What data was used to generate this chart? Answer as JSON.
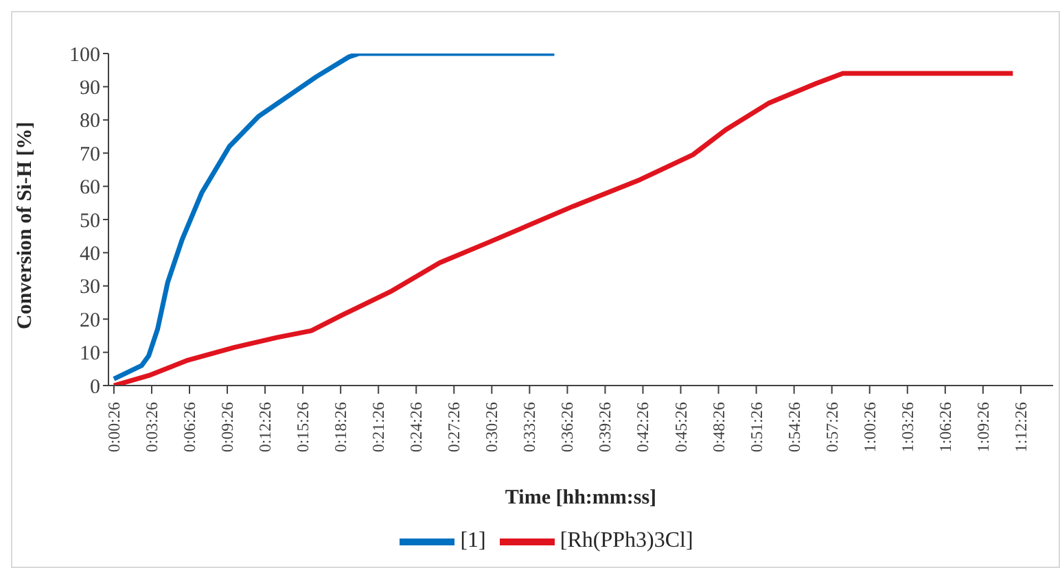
{
  "chart_data": {
    "type": "line",
    "xlabel": "Time [hh:mm:ss]",
    "ylabel": "Conversion of Si-H [%]",
    "xlim": [
      0,
      1.25
    ],
    "ylim": [
      0,
      100
    ],
    "yticks": [
      0,
      10,
      20,
      30,
      40,
      50,
      60,
      70,
      80,
      90,
      100
    ],
    "xticks": [
      {
        "value": 0.0072,
        "label": "0:00:26"
      },
      {
        "value": 0.0572,
        "label": "0:03:26"
      },
      {
        "value": 0.1072,
        "label": "0:06:26"
      },
      {
        "value": 0.1572,
        "label": "0:09:26"
      },
      {
        "value": 0.2072,
        "label": "0:12:26"
      },
      {
        "value": 0.2572,
        "label": "0:15:26"
      },
      {
        "value": 0.3072,
        "label": "0:18:26"
      },
      {
        "value": 0.3572,
        "label": "0:21:26"
      },
      {
        "value": 0.4072,
        "label": "0:24:26"
      },
      {
        "value": 0.4572,
        "label": "0:27:26"
      },
      {
        "value": 0.5072,
        "label": "0:30:26"
      },
      {
        "value": 0.5572,
        "label": "0:33:26"
      },
      {
        "value": 0.6072,
        "label": "0:36:26"
      },
      {
        "value": 0.6572,
        "label": "0:39:26"
      },
      {
        "value": 0.7072,
        "label": "0:42:26"
      },
      {
        "value": 0.7572,
        "label": "0:45:26"
      },
      {
        "value": 0.8072,
        "label": "0:48:26"
      },
      {
        "value": 0.8572,
        "label": "0:51:26"
      },
      {
        "value": 0.9072,
        "label": "0:54:26"
      },
      {
        "value": 0.9572,
        "label": "0:57:26"
      },
      {
        "value": 1.0072,
        "label": "1:00:26"
      },
      {
        "value": 1.0572,
        "label": "1:03:26"
      },
      {
        "value": 1.1072,
        "label": "1:06:26"
      },
      {
        "value": 1.1572,
        "label": "1:09:26"
      },
      {
        "value": 1.2072,
        "label": "1:12:26"
      }
    ],
    "grid": false,
    "legend": "bottom",
    "marker": "none",
    "line_style": "solid",
    "series": [
      {
        "name": "[1]",
        "color": "#0070c0",
        "x": [
          0.0072,
          0.0438,
          0.0533,
          0.065,
          0.0783,
          0.0975,
          0.1233,
          0.16,
          0.1983,
          0.2367,
          0.275,
          0.3183,
          0.3317,
          0.3567,
          0.59
        ],
        "values": [
          2,
          6,
          9,
          17,
          31,
          44,
          58,
          72,
          81,
          87,
          93,
          99,
          100,
          100,
          100
        ]
      },
      {
        "name": "[Rh(PPh3)3Cl]",
        "color": "#e0141e",
        "x": [
          0.0072,
          0.0533,
          0.1033,
          0.1667,
          0.2233,
          0.2683,
          0.3117,
          0.375,
          0.4383,
          0.5017,
          0.615,
          0.7033,
          0.7733,
          0.8167,
          0.8733,
          0.9367,
          0.9717,
          1.1967
        ],
        "values": [
          0,
          3,
          7.5,
          11.5,
          14.5,
          16.5,
          21.5,
          28.5,
          37,
          43,
          54,
          62,
          69.5,
          77,
          85,
          91,
          94,
          94
        ]
      }
    ]
  }
}
